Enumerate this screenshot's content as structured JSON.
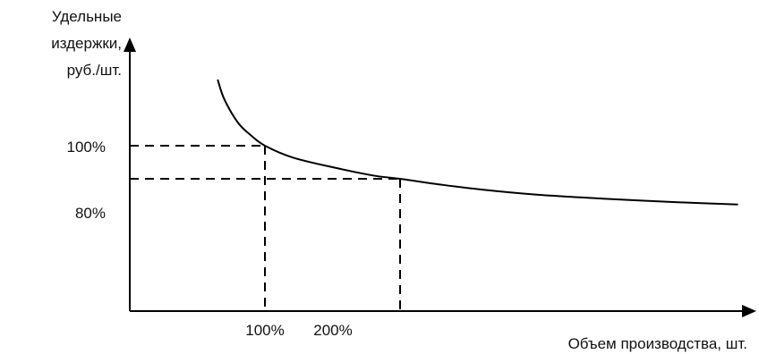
{
  "chart_data": {
    "type": "line",
    "ylabel": [
      "Удельные",
      "издержки,",
      "руб./шт."
    ],
    "xlabel": "Объем производства, шт.",
    "y_ticks": [
      {
        "label": "100%",
        "value": 100
      },
      {
        "label": "80%",
        "value": 80
      }
    ],
    "x_ticks": [
      {
        "label": "100%",
        "value": 100
      },
      {
        "label": "200%",
        "value": 200
      }
    ],
    "xlim": [
      0,
      450
    ],
    "ylim": [
      0,
      145
    ],
    "grid": false,
    "series": [
      {
        "x": [
          65,
          70,
          80,
          90,
          100,
          120,
          150,
          180,
          200,
          230,
          260,
          300,
          350,
          400,
          450
        ],
        "y": [
          140,
          128,
          114,
          106,
          100,
          93,
          87,
          82,
          80,
          76.5,
          73.5,
          70.5,
          68,
          66,
          64.5
        ]
      }
    ],
    "guides": [
      {
        "x": 100,
        "y": 100
      },
      {
        "x": 200,
        "y": 80
      }
    ]
  }
}
